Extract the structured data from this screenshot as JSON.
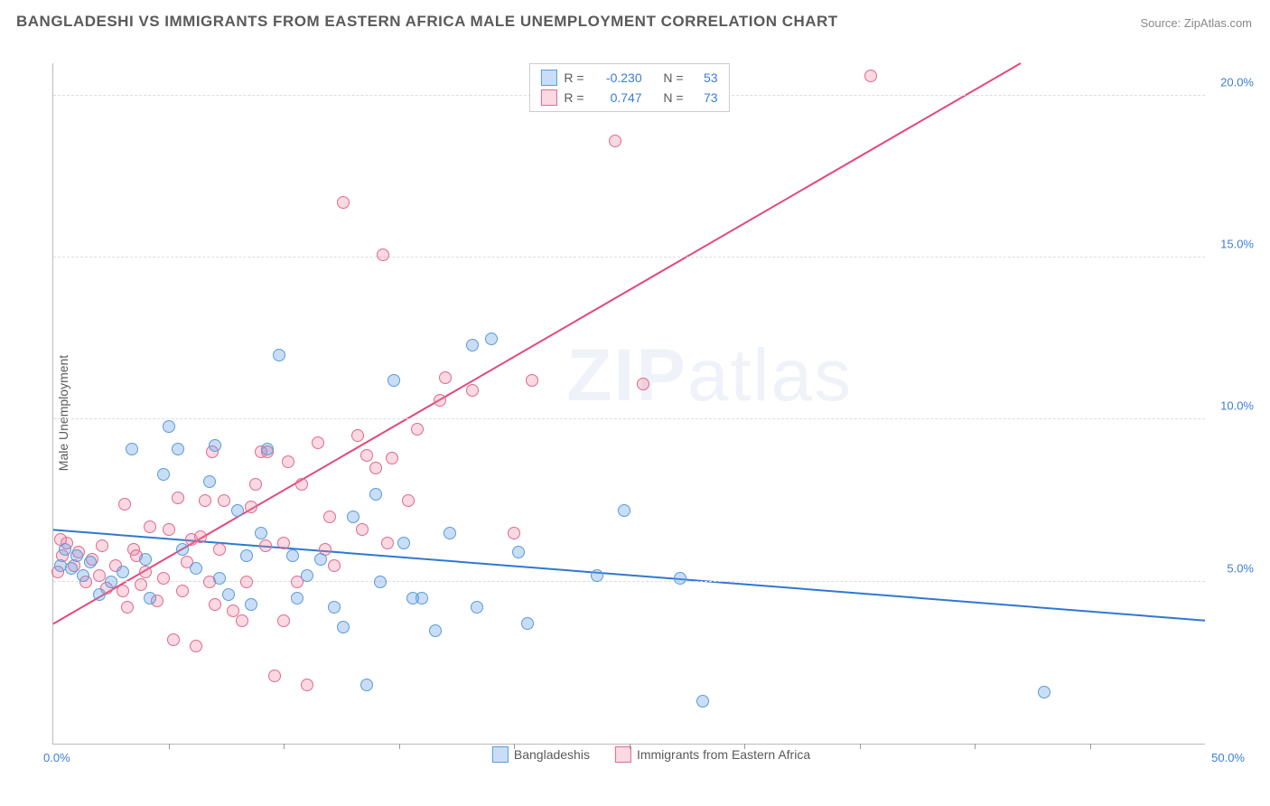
{
  "title": "BANGLADESHI VS IMMIGRANTS FROM EASTERN AFRICA MALE UNEMPLOYMENT CORRELATION CHART",
  "source": "Source: ZipAtlas.com",
  "watermark_a": "ZIP",
  "watermark_b": "atlas",
  "y_axis_title": "Male Unemployment",
  "axes": {
    "xlim": [
      0,
      50
    ],
    "ylim": [
      0,
      21
    ],
    "x_min_label": "0.0%",
    "x_max_label": "50.0%",
    "y_ticks": [
      5.0,
      10.0,
      15.0,
      20.0
    ],
    "y_tick_labels": [
      "5.0%",
      "10.0%",
      "15.0%",
      "20.0%"
    ],
    "x_ticks": [
      5,
      10,
      15,
      20,
      25,
      30,
      35,
      40,
      45
    ],
    "grid_color": "#dddddd"
  },
  "colors": {
    "series1_fill": "rgba(100,160,230,0.35)",
    "series1_stroke": "#5a9bd8",
    "series1_line": "#2f78d0",
    "series2_fill": "rgba(240,130,160,0.3)",
    "series2_stroke": "#e06a8c",
    "series2_line": "#e24a7a",
    "text_label": "#5a5a5a",
    "value_blue": "#3b7dd8"
  },
  "legend_top": {
    "rows": [
      {
        "swatch": 1,
        "R_label": "R =",
        "R_value": "-0.230",
        "N_label": "N =",
        "N_value": "53"
      },
      {
        "swatch": 2,
        "R_label": "R =",
        "R_value": "0.747",
        "N_label": "N =",
        "N_value": "73"
      }
    ]
  },
  "legend_bottom": {
    "items": [
      {
        "swatch": 1,
        "label": "Bangladeshis"
      },
      {
        "swatch": 2,
        "label": "Immigrants from Eastern Africa"
      }
    ]
  },
  "marker_radius": 7,
  "trend_lines": {
    "series1": {
      "x1": 0,
      "y1": 6.6,
      "x2": 50,
      "y2": 3.8
    },
    "series2": {
      "x1": 0,
      "y1": 3.7,
      "x2": 42,
      "y2": 21
    }
  },
  "series1_points": [
    [
      0.3,
      5.5
    ],
    [
      0.5,
      6.0
    ],
    [
      0.8,
      5.4
    ],
    [
      1.0,
      5.8
    ],
    [
      1.3,
      5.2
    ],
    [
      1.6,
      5.6
    ],
    [
      2.0,
      4.6
    ],
    [
      2.5,
      5.0
    ],
    [
      3.0,
      5.3
    ],
    [
      3.4,
      9.1
    ],
    [
      4.0,
      5.7
    ],
    [
      4.2,
      4.5
    ],
    [
      4.8,
      8.3
    ],
    [
      5.0,
      9.8
    ],
    [
      5.4,
      9.1
    ],
    [
      5.6,
      6.0
    ],
    [
      6.2,
      5.4
    ],
    [
      6.8,
      8.1
    ],
    [
      7.0,
      9.2
    ],
    [
      7.2,
      5.1
    ],
    [
      7.6,
      4.6
    ],
    [
      8.0,
      7.2
    ],
    [
      8.4,
      5.8
    ],
    [
      8.6,
      4.3
    ],
    [
      9.0,
      6.5
    ],
    [
      9.3,
      9.1
    ],
    [
      9.8,
      12.0
    ],
    [
      10.4,
      5.8
    ],
    [
      10.6,
      4.5
    ],
    [
      11.0,
      5.2
    ],
    [
      11.6,
      5.7
    ],
    [
      12.2,
      4.2
    ],
    [
      12.6,
      3.6
    ],
    [
      13.0,
      7.0
    ],
    [
      13.6,
      1.8
    ],
    [
      14.0,
      7.7
    ],
    [
      14.2,
      5.0
    ],
    [
      14.8,
      11.2
    ],
    [
      15.2,
      6.2
    ],
    [
      15.6,
      4.5
    ],
    [
      16.0,
      4.5
    ],
    [
      16.6,
      3.5
    ],
    [
      17.2,
      6.5
    ],
    [
      18.2,
      12.3
    ],
    [
      18.4,
      4.2
    ],
    [
      19.0,
      12.5
    ],
    [
      20.2,
      5.9
    ],
    [
      20.6,
      3.7
    ],
    [
      23.6,
      5.2
    ],
    [
      24.8,
      7.2
    ],
    [
      27.2,
      5.1
    ],
    [
      28.2,
      1.3
    ],
    [
      43.0,
      1.6
    ]
  ],
  "series2_points": [
    [
      0.2,
      5.3
    ],
    [
      0.4,
      5.8
    ],
    [
      0.6,
      6.2
    ],
    [
      0.9,
      5.5
    ],
    [
      1.1,
      5.9
    ],
    [
      1.4,
      5.0
    ],
    [
      1.7,
      5.7
    ],
    [
      2.0,
      5.2
    ],
    [
      2.3,
      4.8
    ],
    [
      2.7,
      5.5
    ],
    [
      3.0,
      4.7
    ],
    [
      3.1,
      7.4
    ],
    [
      3.2,
      4.2
    ],
    [
      3.5,
      6.0
    ],
    [
      3.8,
      4.9
    ],
    [
      4.0,
      5.3
    ],
    [
      4.2,
      6.7
    ],
    [
      4.5,
      4.4
    ],
    [
      4.8,
      5.1
    ],
    [
      5.2,
      3.2
    ],
    [
      5.4,
      7.6
    ],
    [
      5.6,
      4.7
    ],
    [
      5.8,
      5.6
    ],
    [
      6.0,
      6.3
    ],
    [
      6.2,
      3.0
    ],
    [
      6.4,
      6.4
    ],
    [
      6.6,
      7.5
    ],
    [
      6.8,
      5.0
    ],
    [
      7.0,
      4.3
    ],
    [
      7.2,
      6.0
    ],
    [
      7.4,
      7.5
    ],
    [
      7.8,
      4.1
    ],
    [
      8.2,
      3.8
    ],
    [
      8.4,
      5.0
    ],
    [
      8.6,
      7.3
    ],
    [
      8.8,
      8.0
    ],
    [
      9.0,
      9.0
    ],
    [
      9.2,
      6.1
    ],
    [
      9.3,
      9.0
    ],
    [
      9.6,
      2.1
    ],
    [
      10.0,
      3.8
    ],
    [
      10.2,
      8.7
    ],
    [
      10.6,
      5.0
    ],
    [
      10.8,
      8.0
    ],
    [
      11.0,
      1.8
    ],
    [
      11.5,
      9.3
    ],
    [
      11.8,
      6.0
    ],
    [
      12.0,
      7.0
    ],
    [
      12.2,
      5.5
    ],
    [
      12.6,
      16.7
    ],
    [
      13.2,
      9.5
    ],
    [
      13.4,
      6.6
    ],
    [
      13.6,
      8.9
    ],
    [
      14.0,
      8.5
    ],
    [
      14.3,
      15.1
    ],
    [
      14.5,
      6.2
    ],
    [
      14.7,
      8.8
    ],
    [
      15.4,
      7.5
    ],
    [
      15.8,
      9.7
    ],
    [
      16.8,
      10.6
    ],
    [
      17.0,
      11.3
    ],
    [
      18.2,
      10.9
    ],
    [
      20.0,
      6.5
    ],
    [
      20.8,
      11.2
    ],
    [
      24.4,
      18.6
    ],
    [
      25.6,
      11.1
    ],
    [
      35.5,
      20.6
    ],
    [
      10.0,
      6.2
    ],
    [
      6.9,
      9.0
    ],
    [
      5.0,
      6.6
    ],
    [
      3.6,
      5.8
    ],
    [
      2.1,
      6.1
    ],
    [
      0.3,
      6.3
    ]
  ]
}
